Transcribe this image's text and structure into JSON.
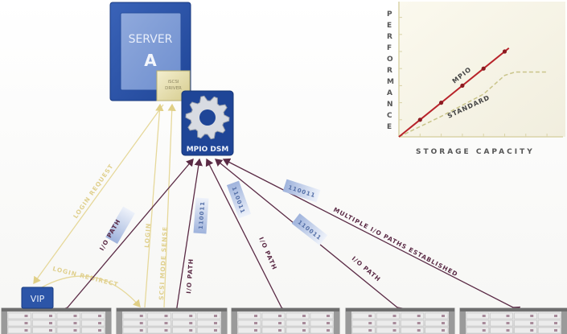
{
  "server": {
    "title": "SERVER",
    "letter": "A",
    "driver_line1": "iSCSI",
    "driver_line2": "DRIVER"
  },
  "mpio": {
    "label": "MPIO DSM",
    "icon": "gear-icon"
  },
  "vip": {
    "label": "VIP"
  },
  "login_labels": {
    "request": "LOGIN REQUEST",
    "login": "LOGIN",
    "mode_sense": "SCSI MODE SENSE",
    "redirect": "LOGIN REDIRECT"
  },
  "paths": {
    "io_path": "I/O PATH",
    "established": "MULTIPLE I/O PATHS ESTABLISHED",
    "packet": "110011"
  },
  "colors": {
    "server_blue": "#2c55a8",
    "login_yellow": "#e6d89a",
    "path_purple": "#5a2a45",
    "mpio_red": "#b8232a",
    "standard_dash": "#c9c48a"
  },
  "chart_data": {
    "type": "line",
    "xlabel": "STORAGE CAPACITY",
    "ylabel": "PERFORMANCE",
    "grid": false,
    "series": [
      {
        "name": "MPIO",
        "x": [
          0,
          1,
          2,
          3,
          4,
          5,
          5.2
        ],
        "y": [
          0,
          1,
          2,
          3,
          4,
          5,
          5.2
        ],
        "markers": [
          1,
          2,
          3,
          4,
          5
        ]
      },
      {
        "name": "STANDARD",
        "x": [
          0,
          2,
          4,
          5,
          5.5,
          7
        ],
        "y": [
          0,
          1.2,
          2.5,
          3.6,
          3.8,
          3.8
        ],
        "style": "dashed"
      }
    ]
  }
}
